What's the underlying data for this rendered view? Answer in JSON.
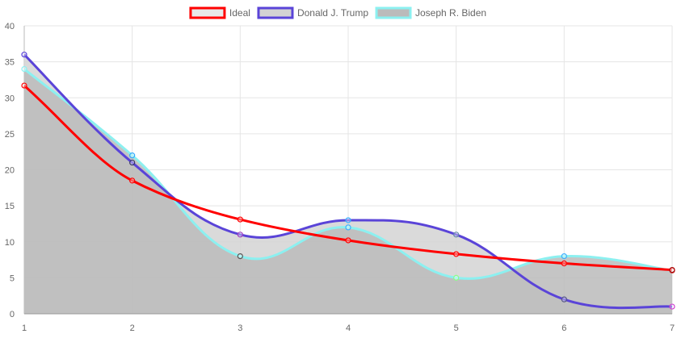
{
  "chart_data": {
    "type": "line",
    "x": [
      1,
      2,
      3,
      4,
      5,
      6,
      7
    ],
    "xlim": [
      1,
      7
    ],
    "ylim": [
      0,
      40
    ],
    "y_ticks": [
      0,
      5,
      10,
      15,
      20,
      25,
      30,
      35,
      40
    ],
    "x_ticks": [
      1,
      2,
      3,
      4,
      5,
      6,
      7
    ],
    "grid": true,
    "legend_position": "top-center",
    "series": [
      {
        "name": "Ideal",
        "color": "#ff0000",
        "fill": "none",
        "smooth": "monotone",
        "values": [
          31.7,
          18.5,
          13.1,
          10.2,
          8.3,
          7.0,
          6.1
        ]
      },
      {
        "name": "Donald J. Trump",
        "color": "#5a44d8",
        "fill": "#d3d3d3",
        "smooth": "spline",
        "values": [
          36,
          21,
          11,
          13,
          11,
          2,
          1
        ]
      },
      {
        "name": "Joseph R. Biden",
        "color": "#8cf0f0",
        "fill": "#bbbbbb",
        "smooth": "spline",
        "values": [
          34,
          22,
          8,
          12,
          5,
          8,
          6
        ]
      }
    ],
    "point_colors": {
      "Ideal": [
        "#ff0000",
        "#ff0000",
        "#ff0000",
        "#ff0000",
        "#ff0000",
        "#ff0000",
        "#aa0000"
      ],
      "Donald J. Trump": [
        "#5a44d8",
        "#333366",
        "#a040c0",
        "#3ab0ff",
        "#6688aa",
        "#555588",
        "#d040d0"
      ],
      "Joseph R. Biden": [
        "#8cf0f0",
        "#33aaff",
        "#555555",
        "#3ab0ff",
        "#88ff88",
        "#3ab0ff",
        "#cc4444"
      ]
    }
  }
}
